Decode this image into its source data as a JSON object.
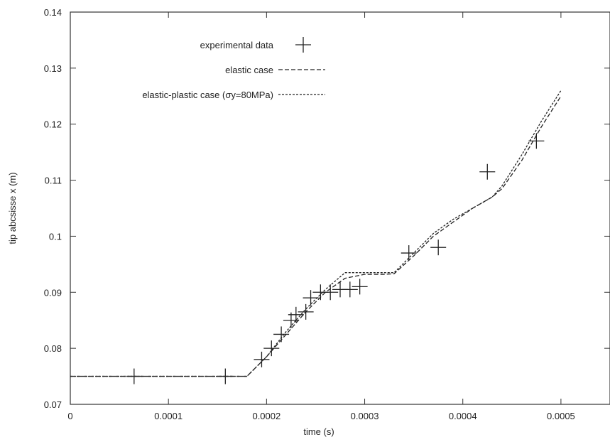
{
  "chart_data": {
    "type": "line",
    "xlabel": "time (s)",
    "ylabel": "tip abcsisse x (m)",
    "xlim": [
      0,
      0.00055
    ],
    "ylim": [
      0.07,
      0.14
    ],
    "xticks": [
      0,
      0.0001,
      0.0002,
      0.0003,
      0.0004,
      0.0005
    ],
    "xtick_labels": [
      "0",
      "0.0001",
      "0.0002",
      "0.0003",
      "0.0004",
      "0.0005"
    ],
    "yticks": [
      0.07,
      0.08,
      0.09,
      0.1,
      0.11,
      0.12,
      0.13,
      0.14
    ],
    "ytick_labels": [
      "0.07",
      "0.08",
      "0.09",
      "0.1",
      "0.11",
      "0.12",
      "0.13",
      "0.14"
    ],
    "grid": false,
    "legend_position": "top-left",
    "series": [
      {
        "name": "experimental data",
        "style": "points-plus",
        "x": [
          6.5e-05,
          0.000158,
          0.000195,
          0.000205,
          0.000215,
          0.000225,
          0.00023,
          0.00024,
          0.000245,
          0.000255,
          0.000265,
          0.000275,
          0.000285,
          0.000295,
          0.000345,
          0.000375,
          0.000425,
          0.000475
        ],
        "y": [
          0.075,
          0.075,
          0.078,
          0.08,
          0.0825,
          0.085,
          0.086,
          0.0865,
          0.089,
          0.09,
          0.09,
          0.0905,
          0.0905,
          0.091,
          0.097,
          0.098,
          0.1115,
          0.117
        ]
      },
      {
        "name": "elastic case",
        "style": "dashed",
        "x": [
          0,
          0.00018,
          0.0002,
          0.00022,
          0.00024,
          0.00026,
          0.00028,
          0.0003,
          0.00032,
          0.00033,
          0.00035,
          0.00037,
          0.00039,
          0.00041,
          0.00043,
          0.00044,
          0.00046,
          0.00048,
          0.0005
        ],
        "y": [
          0.075,
          0.075,
          0.0785,
          0.0825,
          0.0865,
          0.09,
          0.0925,
          0.0932,
          0.0932,
          0.0933,
          0.0965,
          0.1,
          0.1025,
          0.105,
          0.107,
          0.1085,
          0.1135,
          0.1195,
          0.125
        ]
      },
      {
        "name": "elastic-plastic case (σy=80MPa)",
        "style": "dotted",
        "x": [
          0,
          0.00018,
          0.0002,
          0.00022,
          0.00024,
          0.00026,
          0.00028,
          0.0003,
          0.00032,
          0.00033,
          0.00035,
          0.00037,
          0.00039,
          0.00041,
          0.00043,
          0.00044,
          0.00046,
          0.00048,
          0.0005
        ],
        "y": [
          0.075,
          0.075,
          0.0785,
          0.083,
          0.087,
          0.0905,
          0.0935,
          0.0935,
          0.0935,
          0.0935,
          0.097,
          0.1005,
          0.103,
          0.105,
          0.107,
          0.109,
          0.1145,
          0.1205,
          0.126
        ]
      }
    ]
  }
}
